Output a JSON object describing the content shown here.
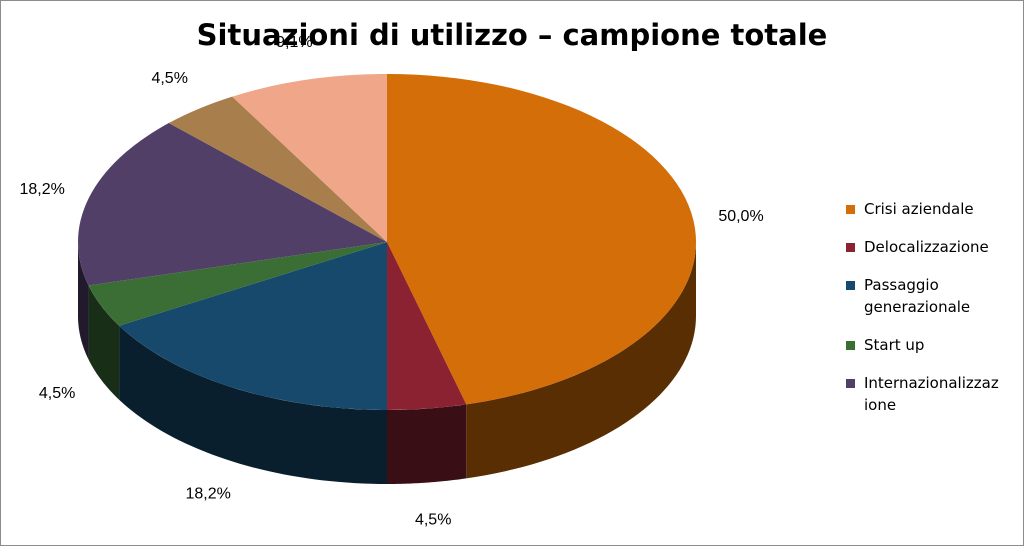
{
  "chart_data": {
    "type": "pie",
    "title": "Situazioni di utilizzo – campione totale",
    "legend_position": "right",
    "slices": [
      {
        "name": "Crisi aziendale",
        "value": 50.0,
        "label": "50,0%",
        "color": "#D46E08"
      },
      {
        "name": "Delocalizzazione",
        "value": 4.5,
        "label": "4,5%",
        "color": "#8B2232"
      },
      {
        "name": "Passaggio generazionale",
        "value": 18.2,
        "label": "18,2%",
        "color": "#17496D"
      },
      {
        "name": "Start up",
        "value": 4.5,
        "label": "4,5%",
        "color": "#3A6E34"
      },
      {
        "name": "Internazionalizzazione",
        "value": 18.2,
        "label": "18,2%",
        "color": "#523F68"
      },
      {
        "name": "",
        "value": 4.5,
        "label": "4,5%",
        "color": "#A87E4D"
      },
      {
        "name": "",
        "value": 9.1,
        "label": "9,1%",
        "color": "#F0A688"
      }
    ],
    "legend": [
      {
        "text": "Crisi aziendale",
        "color": "#D46E08"
      },
      {
        "text": "Delocalizzazione",
        "color": "#8B2232"
      },
      {
        "text": "Passaggio\ngenerazionale",
        "color": "#17496D"
      },
      {
        "text": "Start up",
        "color": "#3A6E34"
      },
      {
        "text": "Internazionalizzaz\nione",
        "color": "#523F68"
      }
    ]
  }
}
